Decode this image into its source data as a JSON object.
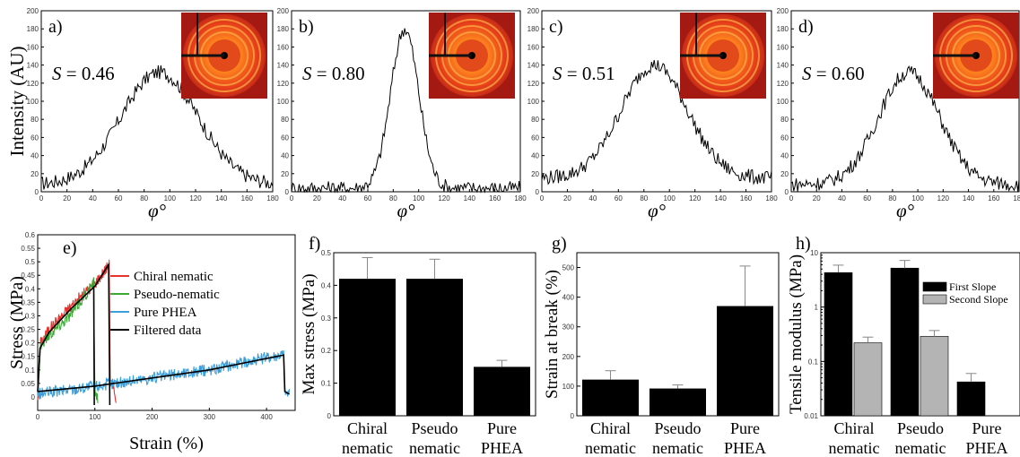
{
  "chart_data": [
    {
      "type": "line",
      "panel": "a)",
      "annotation": "S = 0.46",
      "s_symbol": "S",
      "s_value": "= 0.46",
      "ylabel": "Intensity (AU)",
      "xlabel": "φ°",
      "xlim": [
        0,
        180
      ],
      "ylim": [
        0,
        200
      ],
      "xticks": [
        0,
        20,
        40,
        60,
        80,
        100,
        120,
        140,
        160,
        180
      ],
      "yticks": [
        0,
        20,
        40,
        60,
        80,
        100,
        120,
        140,
        160,
        180,
        200
      ],
      "profile": {
        "center": 92,
        "width": 30,
        "peak": 132,
        "base": 8
      },
      "inset": "diffraction-pattern-image"
    },
    {
      "type": "line",
      "panel": "b)",
      "annotation": "S = 0.80",
      "s_symbol": "S",
      "s_value": "= 0.80",
      "xlabel": "φ°",
      "xlim": [
        0,
        180
      ],
      "ylim": [
        0,
        200
      ],
      "xticks": [
        0,
        20,
        40,
        60,
        80,
        100,
        120,
        140,
        160,
        180
      ],
      "yticks": [
        0,
        20,
        40,
        60,
        80,
        100,
        120,
        140,
        160,
        180,
        200
      ],
      "profile": {
        "center": 89,
        "width": 11,
        "peak": 180,
        "base": 4
      },
      "inset": "diffraction-pattern-image"
    },
    {
      "type": "line",
      "panel": "c)",
      "annotation": "S = 0.51",
      "s_symbol": "S",
      "s_value": "= 0.51",
      "xlabel": "φ°",
      "xlim": [
        0,
        180
      ],
      "ylim": [
        0,
        200
      ],
      "xticks": [
        0,
        20,
        40,
        60,
        80,
        100,
        120,
        140,
        160,
        180
      ],
      "yticks": [
        0,
        20,
        40,
        60,
        80,
        100,
        120,
        140,
        160,
        180,
        200
      ],
      "profile": {
        "center": 88,
        "width": 26,
        "peak": 140,
        "base": 15
      },
      "inset": "diffraction-pattern-image"
    },
    {
      "type": "line",
      "panel": "d)",
      "annotation": "S = 0.60",
      "s_symbol": "S",
      "s_value": "= 0.60",
      "xlabel": "φ°",
      "xlim": [
        0,
        180
      ],
      "ylim": [
        0,
        200
      ],
      "xticks": [
        0,
        20,
        40,
        60,
        80,
        100,
        120,
        140,
        160,
        180
      ],
      "yticks": [
        0,
        20,
        40,
        60,
        80,
        100,
        120,
        140,
        160,
        180,
        200
      ],
      "profile": {
        "center": 93,
        "width": 24,
        "peak": 132,
        "base": 8
      },
      "inset": "diffraction-pattern-image"
    },
    {
      "type": "line",
      "panel": "e)",
      "xlabel": "Strain (%)",
      "ylabel": "Stress (MPa)",
      "xlim": [
        0,
        450
      ],
      "ylim": [
        -0.05,
        0.6
      ],
      "xticks": [
        0,
        100,
        200,
        300,
        400
      ],
      "yticks": [
        0,
        0.05,
        0.1,
        0.15,
        0.2,
        0.25,
        0.3,
        0.35,
        0.4,
        0.45,
        0.5,
        0.55,
        0.6
      ],
      "legend_position": "right",
      "series": [
        {
          "name": "Chiral nematic",
          "color": "#e8332c",
          "points": [
            [
              0,
              0
            ],
            [
              5,
              0.2
            ],
            [
              20,
              0.25
            ],
            [
              60,
              0.34
            ],
            [
              100,
              0.42
            ],
            [
              125,
              0.49
            ],
            [
              127,
              0.05
            ],
            [
              137,
              0.0
            ]
          ]
        },
        {
          "name": "Pseudo-nematic",
          "color": "#3aa935",
          "points": [
            [
              0,
              0
            ],
            [
              5,
              0.19
            ],
            [
              20,
              0.23
            ],
            [
              60,
              0.31
            ],
            [
              98,
              0.42
            ],
            [
              100,
              0.03
            ],
            [
              105,
              -0.01
            ]
          ]
        },
        {
          "name": "Pure PHEA",
          "color": "#3b9fdc",
          "points": [
            [
              0,
              0.01
            ],
            [
              100,
              0.04
            ],
            [
              200,
              0.07
            ],
            [
              300,
              0.1
            ],
            [
              430,
              0.16
            ],
            [
              432,
              0.02
            ],
            [
              440,
              0.01
            ]
          ]
        },
        {
          "name": "Filtered data",
          "color": "#000000",
          "points": [
            [
              0,
              0.02
            ],
            [
              4,
              0.18
            ],
            [
              20,
              0.24
            ],
            [
              60,
              0.33
            ],
            [
              100,
              0.41
            ],
            [
              124,
              0.49
            ],
            [
              126,
              -0.03
            ],
            [
              100,
              0.41
            ],
            [
              99,
              -0.03
            ]
          ]
        }
      ]
    },
    {
      "type": "bar",
      "panel": "f)",
      "ylabel": "Max stress (MPa)",
      "categories": [
        [
          "Chiral",
          "nematic"
        ],
        [
          "Pseudo",
          "nematic"
        ],
        [
          "Pure",
          "PHEA"
        ]
      ],
      "values": [
        0.42,
        0.42,
        0.15
      ],
      "errors": [
        0.065,
        0.06,
        0.02
      ],
      "ylim": [
        0,
        0.5
      ],
      "yticks": [
        0,
        0.1,
        0.2,
        0.3,
        0.4,
        0.5
      ],
      "color": "#000000"
    },
    {
      "type": "bar",
      "panel": "g)",
      "ylabel": "Strain at break (%)",
      "categories": [
        [
          "Chiral",
          "nematic"
        ],
        [
          "Pseudo",
          "nematic"
        ],
        [
          "Pure",
          "PHEA"
        ]
      ],
      "values": [
        122,
        92,
        370
      ],
      "errors": [
        30,
        12,
        135
      ],
      "ylim": [
        0,
        550
      ],
      "yticks": [
        0,
        100,
        200,
        300,
        400,
        500
      ],
      "color": "#000000"
    },
    {
      "type": "bar",
      "panel": "h)",
      "ylabel": "Tensile modulus (MPa)",
      "categories": [
        [
          "Chiral",
          "nematic"
        ],
        [
          "Pseudo",
          "nematic"
        ],
        [
          "Pure",
          "PHEA"
        ]
      ],
      "scale": "log",
      "ylim": [
        0.01,
        10
      ],
      "yticks": [
        0.01,
        0.1,
        1,
        10
      ],
      "legend_position": "top-right",
      "series": [
        {
          "name": "First Slope",
          "color": "#000000",
          "values": [
            4.3,
            5.2,
            0.042
          ],
          "errors": [
            1.6,
            2.0,
            0.018
          ]
        },
        {
          "name": "Second Slope",
          "color": "#b4b4b4",
          "values": [
            0.22,
            0.29,
            null
          ],
          "errors": [
            0.06,
            0.08,
            null
          ]
        }
      ]
    }
  ]
}
